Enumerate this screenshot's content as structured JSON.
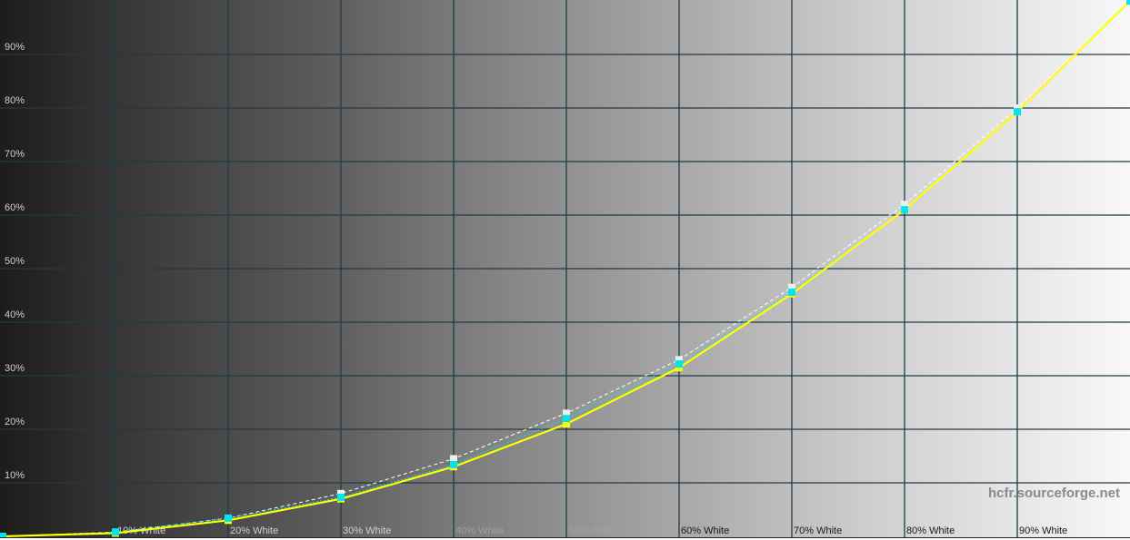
{
  "chart_data": {
    "type": "line",
    "x": [
      0,
      10,
      20,
      30,
      40,
      50,
      60,
      70,
      80,
      90,
      100
    ],
    "x_tick_labels": [
      "",
      "10% White",
      "20% White",
      "30% White",
      "40% White",
      "50% White",
      "60% White",
      "70% White",
      "80% White",
      "90% White",
      ""
    ],
    "y_tick_labels": [
      "10%",
      "20%",
      "30%",
      "40%",
      "50%",
      "60%",
      "70%",
      "80%",
      "90%"
    ],
    "y_ticks": [
      10,
      20,
      30,
      40,
      50,
      60,
      70,
      80,
      90
    ],
    "xlim": [
      0,
      100
    ],
    "ylim": [
      0,
      100
    ],
    "grid": true,
    "series": [
      {
        "role": "reference",
        "style": "white dashed",
        "color": "#ffffff",
        "values": [
          0,
          0.8,
          3.4,
          8.0,
          14.5,
          23.0,
          33.0,
          46.5,
          62.0,
          80.0,
          100
        ]
      },
      {
        "role": "measured points",
        "style": "cyan markers",
        "color": "#00e5ee",
        "values": [
          0,
          0.8,
          3.4,
          7.3,
          13.4,
          22.0,
          32.2,
          45.6,
          61.0,
          79.3,
          100
        ]
      },
      {
        "role": "luminance",
        "style": "yellow line",
        "color": "#ffff00",
        "values": [
          0,
          0.6,
          3.0,
          7.0,
          13.0,
          21.0,
          31.5,
          45.3,
          61.0,
          79.3,
          100
        ]
      }
    ],
    "watermark": "hcfr.sourceforge.net"
  }
}
